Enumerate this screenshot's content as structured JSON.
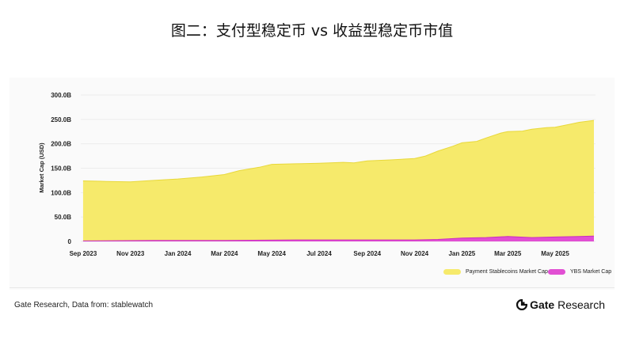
{
  "title": "图二：支付型稳定币 vs 收益型稳定币市值",
  "source": "Gate Research, Data from: stablewatch",
  "brand": {
    "name_bold": "Gate",
    "name_rest": " Research"
  },
  "colors": {
    "payment": "#f6ea6b",
    "payment_stroke": "#e8d83a",
    "ybs": "#e14fd3",
    "ybs_stroke": "#c92fbf"
  },
  "chart_data": {
    "type": "area",
    "title": "图二：支付型稳定币 vs 收益型稳定币市值",
    "xlabel": "",
    "ylabel": "Market Cap (USD)",
    "ylim": [
      0,
      300
    ],
    "y_unit": "B",
    "y_ticks": [
      "0",
      "50.0B",
      "100.0B",
      "150.0B",
      "200.0B",
      "250.0B",
      "300.0B"
    ],
    "x_ticks": [
      "Sep 2023",
      "Nov 2023",
      "Jan 2024",
      "Mar 2024",
      "May 2024",
      "Jul 2024",
      "Sep 2024",
      "Nov 2024",
      "Jan 2025",
      "Mar 2025",
      "May 2025"
    ],
    "grid": true,
    "legend_position": "bottom-right",
    "series": [
      {
        "name": "Payment Stablecoins Market Cap",
        "x": [
          "2023-09-01",
          "2023-10-01",
          "2023-11-01",
          "2023-12-01",
          "2024-01-01",
          "2024-02-01",
          "2024-03-01",
          "2024-03-20",
          "2024-04-15",
          "2024-05-01",
          "2024-06-01",
          "2024-07-01",
          "2024-08-01",
          "2024-08-15",
          "2024-09-01",
          "2024-10-01",
          "2024-11-01",
          "2024-11-15",
          "2024-12-01",
          "2024-12-20",
          "2025-01-01",
          "2025-01-20",
          "2025-02-01",
          "2025-02-20",
          "2025-03-01",
          "2025-03-20",
          "2025-04-01",
          "2025-04-20",
          "2025-05-01",
          "2025-05-20",
          "2025-06-01",
          "2025-06-20"
        ],
        "values": [
          124,
          123,
          122,
          125,
          128,
          132,
          137,
          145,
          152,
          158,
          159,
          160,
          162,
          161,
          165,
          167,
          170,
          175,
          185,
          195,
          202,
          205,
          212,
          222,
          225,
          226,
          230,
          233,
          234,
          240,
          244,
          248
        ]
      },
      {
        "name": "YBS Market Cap",
        "x": [
          "2023-09-01",
          "2023-12-01",
          "2024-03-01",
          "2024-06-01",
          "2024-09-01",
          "2024-11-01",
          "2024-12-01",
          "2025-01-01",
          "2025-02-01",
          "2025-03-01",
          "2025-04-01",
          "2025-05-01",
          "2025-06-01",
          "2025-06-20"
        ],
        "values": [
          1,
          2,
          2,
          3,
          3,
          3,
          4,
          7,
          8,
          10,
          8,
          9,
          10,
          11
        ]
      }
    ]
  }
}
